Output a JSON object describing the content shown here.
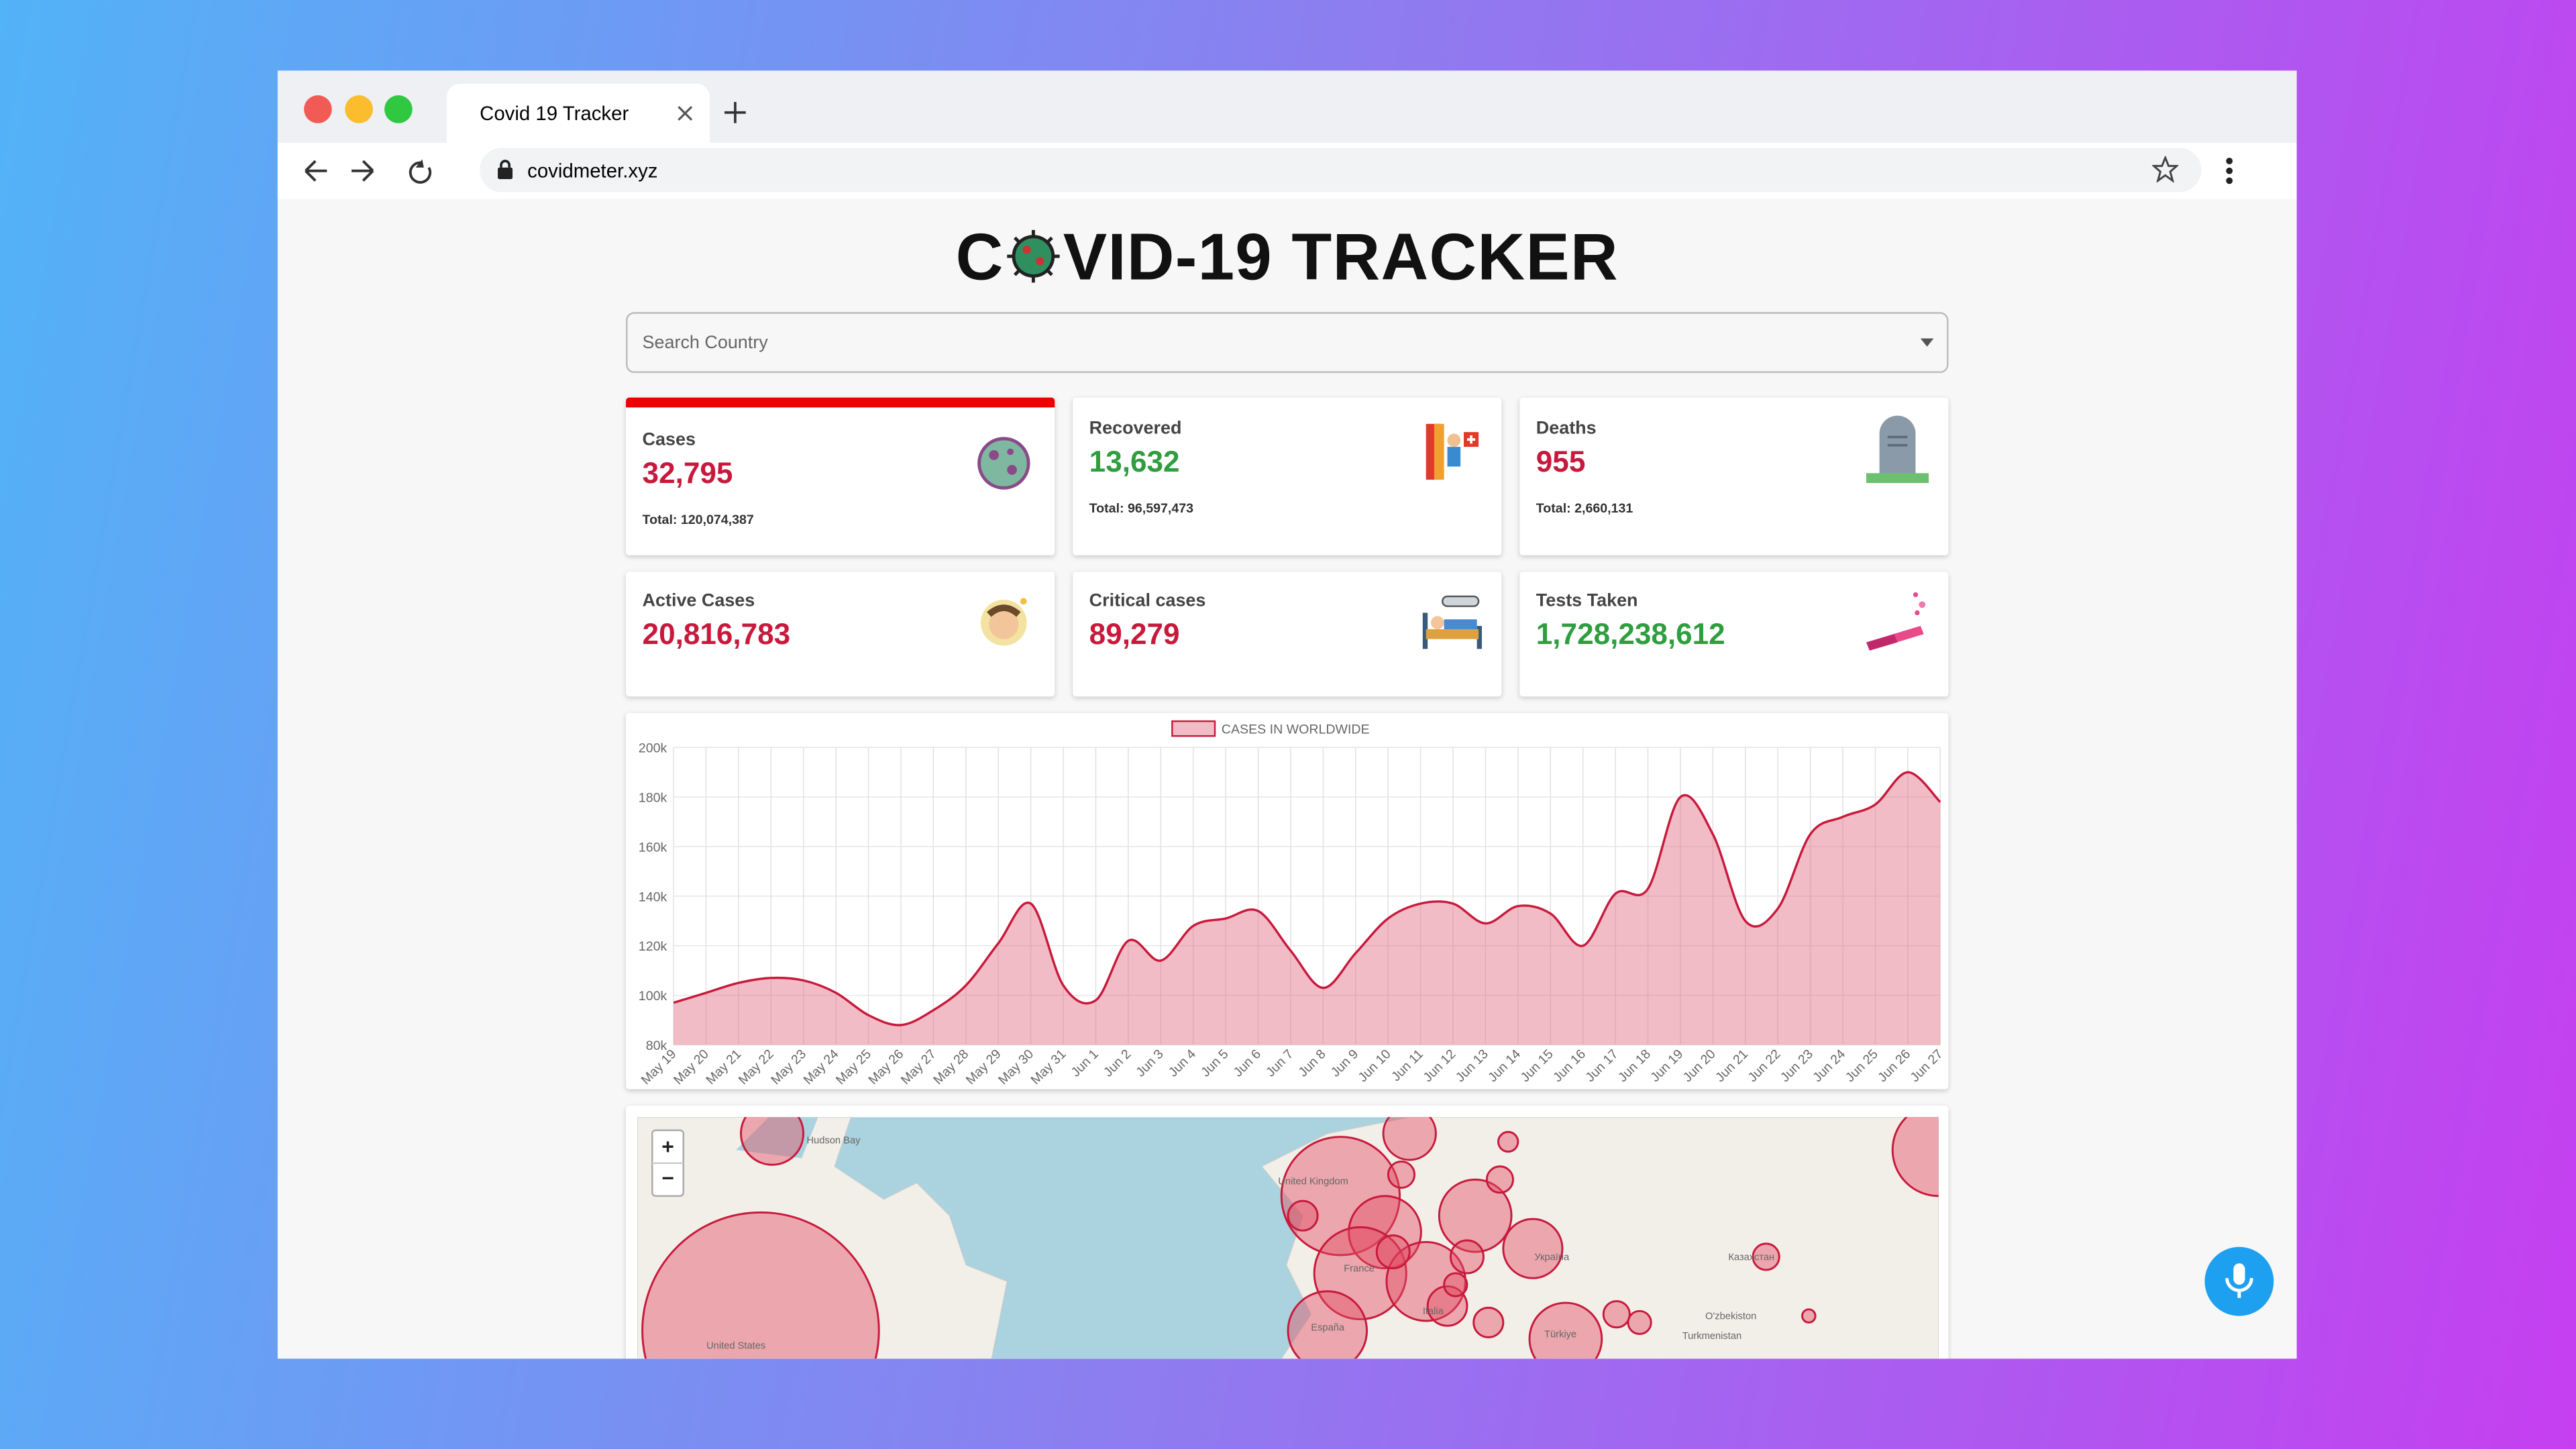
{
  "browser": {
    "tab_title": "Covid 19 Tracker",
    "url": "covidmeter.xyz"
  },
  "header": {
    "title_start": "C",
    "title_end": "VID-19 TRACKER"
  },
  "search": {
    "placeholder": "Search Country"
  },
  "cards": [
    {
      "label": "Cases",
      "value": "32,795",
      "total": "Total: 120,074,387"
    },
    {
      "label": "Recovered",
      "value": "13,632",
      "total": "Total: 96,597,473"
    },
    {
      "label": "Deaths",
      "value": "955",
      "total": "Total: 2,660,131"
    },
    {
      "label": "Active Cases",
      "value": "20,816,783"
    },
    {
      "label": "Critical cases",
      "value": "89,279"
    },
    {
      "label": "Tests Taken",
      "value": "1,728,238,612"
    }
  ],
  "chart_data": {
    "type": "area",
    "legend": "CASES IN WORLDWIDE",
    "color": "#c8193c",
    "fill": "rgba(226,106,128,0.45)",
    "grid": true,
    "categories": [
      "May 19",
      "May 20",
      "May 21",
      "May 22",
      "May 23",
      "May 24",
      "May 25",
      "May 26",
      "May 27",
      "May 28",
      "May 29",
      "May 30",
      "May 31",
      "Jun 1",
      "Jun 2",
      "Jun 3",
      "Jun 4",
      "Jun 5",
      "Jun 6",
      "Jun 7",
      "Jun 8",
      "Jun 9",
      "Jun 10",
      "Jun 11",
      "Jun 12",
      "Jun 13",
      "Jun 14",
      "Jun 15",
      "Jun 16",
      "Jun 17",
      "Jun 18",
      "Jun 19",
      "Jun 20",
      "Jun 21",
      "Jun 22",
      "Jun 23",
      "Jun 24",
      "Jun 25",
      "Jun 26",
      "Jun 27"
    ],
    "values": [
      97000,
      101000,
      105000,
      107000,
      106000,
      101000,
      92000,
      88000,
      94000,
      104000,
      121000,
      137000,
      104000,
      98000,
      122000,
      114000,
      128000,
      131000,
      134000,
      118000,
      103000,
      117000,
      131000,
      137000,
      137000,
      129000,
      136000,
      133000,
      120000,
      141000,
      143000,
      180000,
      165000,
      130000,
      135000,
      165000,
      172000,
      177000,
      190000,
      178000
    ],
    "ylim": [
      80000,
      200000
    ],
    "yticks": [
      {
        "value": 80000,
        "label": "80k"
      },
      {
        "value": 100000,
        "label": "100k"
      },
      {
        "value": 120000,
        "label": "120k"
      },
      {
        "value": 140000,
        "label": "140k"
      },
      {
        "value": 160000,
        "label": "160k"
      },
      {
        "value": 180000,
        "label": "180k"
      },
      {
        "value": 200000,
        "label": "200k"
      }
    ]
  },
  "map": {
    "zoom_in": "+",
    "zoom_out": "−",
    "labels": [
      "Hudson Bay",
      "United Kingdom",
      "France",
      "España",
      "Italia",
      "Україна",
      "Türkiye",
      "Казахстан",
      "O'zbekiston",
      "Turkmenistan",
      "United States"
    ]
  }
}
